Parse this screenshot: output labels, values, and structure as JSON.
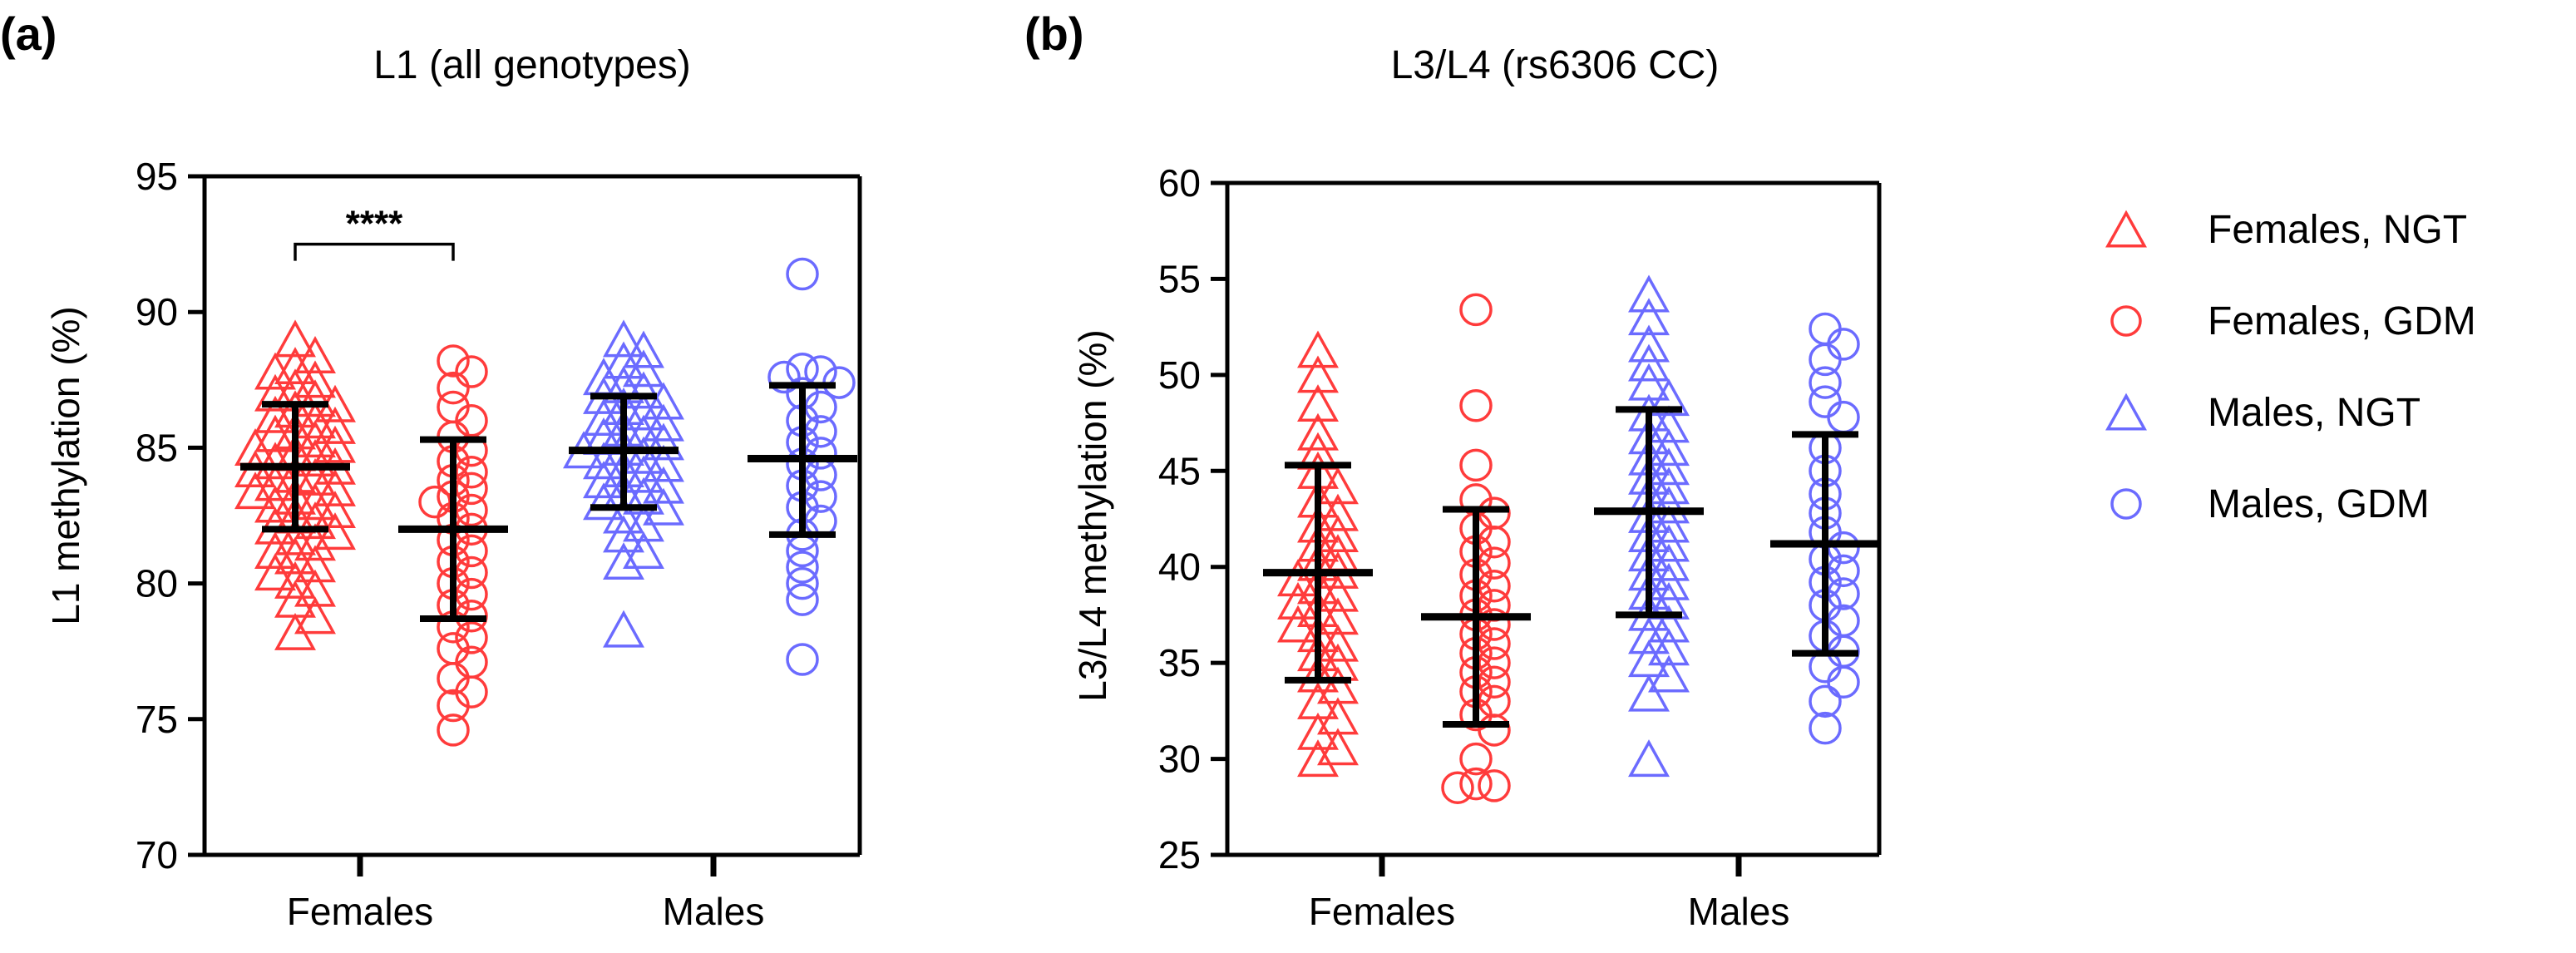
{
  "colors": {
    "female": "#ff3b3b",
    "male": "#6b6bff",
    "axis": "#000000",
    "summary": "#000000"
  },
  "legend": [
    {
      "label": "Females, NGT",
      "marker": "triangle",
      "color": "#ff3b3b"
    },
    {
      "label": "Females, GDM",
      "marker": "circle",
      "color": "#ff3b3b"
    },
    {
      "label": "Males, NGT",
      "marker": "triangle",
      "color": "#6b6bff"
    },
    {
      "label": "Males, GDM",
      "marker": "circle",
      "color": "#6b6bff"
    }
  ],
  "chart_data": [
    {
      "panel": "(a)",
      "type": "scatter",
      "title": "L1 (all genotypes)",
      "ylabel": "L1 methylation (%)",
      "xlabel": "",
      "ylim": [
        70,
        95
      ],
      "yticks": [
        70,
        75,
        80,
        85,
        90,
        95
      ],
      "categories": [
        "Females",
        "Males"
      ],
      "significance": [
        {
          "between": [
            "Females, NGT",
            "Females, GDM"
          ],
          "label": "****",
          "y": 92.5
        }
      ],
      "series": [
        {
          "name": "Females, NGT",
          "group": "Females",
          "marker": "triangle",
          "color": "#ff3b3b",
          "mean": 84.3,
          "sd_low": 82.0,
          "sd_high": 86.6,
          "values": [
            89.0,
            88.4,
            88.0,
            87.8,
            87.5,
            87.2,
            87.0,
            86.8,
            86.6,
            86.4,
            86.2,
            86.0,
            85.8,
            85.6,
            85.5,
            85.3,
            85.1,
            85.0,
            84.8,
            84.6,
            84.5,
            84.3,
            84.2,
            84.0,
            83.9,
            83.7,
            83.5,
            83.4,
            83.2,
            83.0,
            82.9,
            82.7,
            82.5,
            82.3,
            82.1,
            81.9,
            81.7,
            81.5,
            81.2,
            81.0,
            80.7,
            80.4,
            80.1,
            79.8,
            79.4,
            78.8,
            78.2
          ]
        },
        {
          "name": "Females, GDM",
          "group": "Females",
          "marker": "circle",
          "color": "#ff3b3b",
          "mean": 82.0,
          "sd_low": 78.7,
          "sd_high": 85.3,
          "values": [
            88.2,
            87.8,
            87.2,
            86.5,
            86.0,
            85.4,
            84.9,
            84.5,
            84.1,
            83.8,
            83.5,
            83.2,
            83.0,
            82.7,
            82.4,
            82.0,
            81.6,
            81.2,
            80.8,
            80.4,
            80.0,
            79.6,
            79.2,
            78.8,
            78.4,
            78.0,
            77.6,
            77.1,
            76.5,
            76.0,
            75.5,
            74.6
          ]
        },
        {
          "name": "Males, NGT",
          "group": "Males",
          "marker": "triangle",
          "color": "#6b6bff",
          "mean": 84.9,
          "sd_low": 82.8,
          "sd_high": 86.9,
          "values": [
            89.0,
            88.6,
            88.2,
            87.9,
            87.6,
            87.3,
            87.1,
            86.9,
            86.7,
            86.5,
            86.3,
            86.1,
            85.9,
            85.7,
            85.5,
            85.4,
            85.2,
            85.0,
            84.9,
            84.7,
            84.5,
            84.4,
            84.2,
            84.0,
            83.8,
            83.6,
            83.4,
            83.2,
            83.0,
            82.8,
            82.5,
            82.2,
            81.8,
            81.2,
            80.8,
            78.3
          ]
        },
        {
          "name": "Males, GDM",
          "group": "Males",
          "marker": "circle",
          "color": "#6b6bff",
          "mean": 84.6,
          "sd_low": 81.8,
          "sd_high": 87.3,
          "values": [
            91.4,
            87.9,
            87.8,
            87.6,
            87.4,
            87.0,
            86.5,
            86.0,
            85.6,
            85.2,
            84.8,
            84.4,
            84.0,
            83.6,
            83.2,
            82.8,
            82.3,
            81.8,
            81.2,
            80.6,
            80.0,
            79.4,
            77.2
          ]
        }
      ]
    },
    {
      "panel": "(b)",
      "type": "scatter",
      "title": "L3/L4 (rs6306 CC)",
      "ylabel": "L3/L4 methylation (%)",
      "xlabel": "",
      "ylim": [
        25,
        60
      ],
      "yticks": [
        25,
        30,
        35,
        40,
        45,
        50,
        55,
        60
      ],
      "categories": [
        "Females",
        "Males"
      ],
      "significance": [],
      "series": [
        {
          "name": "Females, NGT",
          "group": "Females",
          "marker": "triangle",
          "color": "#ff3b3b",
          "mean": 39.7,
          "sd_low": 34.1,
          "sd_high": 45.3,
          "values": [
            51.3,
            50.0,
            48.5,
            47.0,
            46.0,
            45.0,
            44.2,
            43.5,
            42.8,
            42.2,
            41.7,
            41.2,
            40.7,
            40.2,
            39.8,
            39.4,
            39.0,
            38.6,
            38.2,
            37.8,
            37.4,
            37.0,
            36.5,
            36.0,
            35.5,
            35.0,
            34.4,
            33.8,
            33.0,
            32.2,
            31.4,
            30.6,
            30.0
          ]
        },
        {
          "name": "Females, GDM",
          "group": "Females",
          "marker": "circle",
          "color": "#ff3b3b",
          "mean": 37.4,
          "sd_low": 31.8,
          "sd_high": 43.0,
          "values": [
            53.4,
            48.4,
            45.3,
            43.5,
            42.8,
            42.0,
            41.3,
            40.8,
            40.2,
            39.6,
            39.0,
            38.5,
            38.0,
            37.5,
            37.0,
            36.5,
            36.0,
            35.5,
            35.0,
            34.5,
            34.0,
            33.5,
            33.0,
            32.3,
            31.5,
            30.0,
            28.7,
            28.6,
            28.5
          ]
        },
        {
          "name": "Males, NGT",
          "group": "Males",
          "marker": "triangle",
          "color": "#6b6bff",
          "mean": 42.9,
          "sd_low": 37.5,
          "sd_high": 48.2,
          "values": [
            54.2,
            53.0,
            51.6,
            50.6,
            49.6,
            48.8,
            48.0,
            47.4,
            46.8,
            46.2,
            45.7,
            45.2,
            44.7,
            44.2,
            43.7,
            43.2,
            42.7,
            42.2,
            41.7,
            41.2,
            40.7,
            40.2,
            39.7,
            39.2,
            38.7,
            38.2,
            37.6,
            37.0,
            36.4,
            35.8,
            35.2,
            34.4,
            33.4,
            30.0
          ]
        },
        {
          "name": "Males, GDM",
          "group": "Males",
          "marker": "circle",
          "color": "#6b6bff",
          "mean": 41.2,
          "sd_low": 35.5,
          "sd_high": 46.9,
          "values": [
            52.4,
            51.6,
            50.8,
            49.6,
            48.6,
            47.8,
            46.2,
            45.0,
            43.8,
            42.8,
            41.8,
            41.0,
            40.4,
            39.8,
            39.2,
            38.6,
            38.0,
            37.2,
            36.4,
            35.6,
            34.8,
            34.0,
            33.0,
            31.6
          ]
        }
      ]
    }
  ]
}
